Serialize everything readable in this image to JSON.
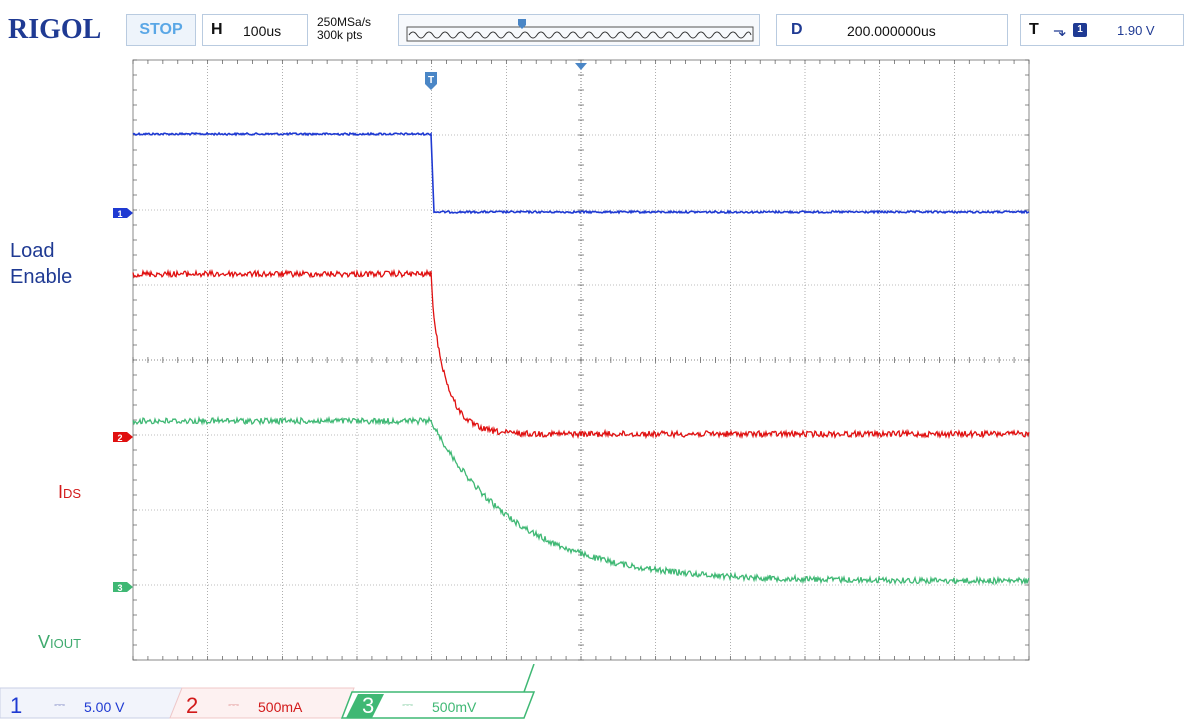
{
  "header": {
    "brand": "RIGOL",
    "run_status": "STOP",
    "horizontal_tag": "H",
    "timebase": "100us",
    "sample_rate": "250MSa/s",
    "memory_depth": "300k pts",
    "delay_tag": "D",
    "delay_value": "200.000000us",
    "trigger_tag": "T",
    "trigger_source": "1",
    "trigger_level": "1.90 V"
  },
  "labels": {
    "load": "Load",
    "enable": "Enable",
    "ids_main": "I",
    "ids_sub": "DS",
    "viout_main": "V",
    "viout_sub": "IOUT"
  },
  "channels": [
    {
      "number": "1",
      "coupling": "⎓",
      "scale": "5.00 V",
      "color": "#1f3ad2"
    },
    {
      "number": "2",
      "coupling": "⎓",
      "scale": "500mA",
      "color": "#d21a1a"
    },
    {
      "number": "3",
      "coupling": "⎓",
      "scale": "500mV",
      "color": "#3faa6e"
    }
  ],
  "colors": {
    "ch1": "#1f3ad2",
    "ch2": "#e01010",
    "ch3": "#3fb874",
    "grid": "#7a7a7a",
    "brand": "#1f3a93"
  }
}
